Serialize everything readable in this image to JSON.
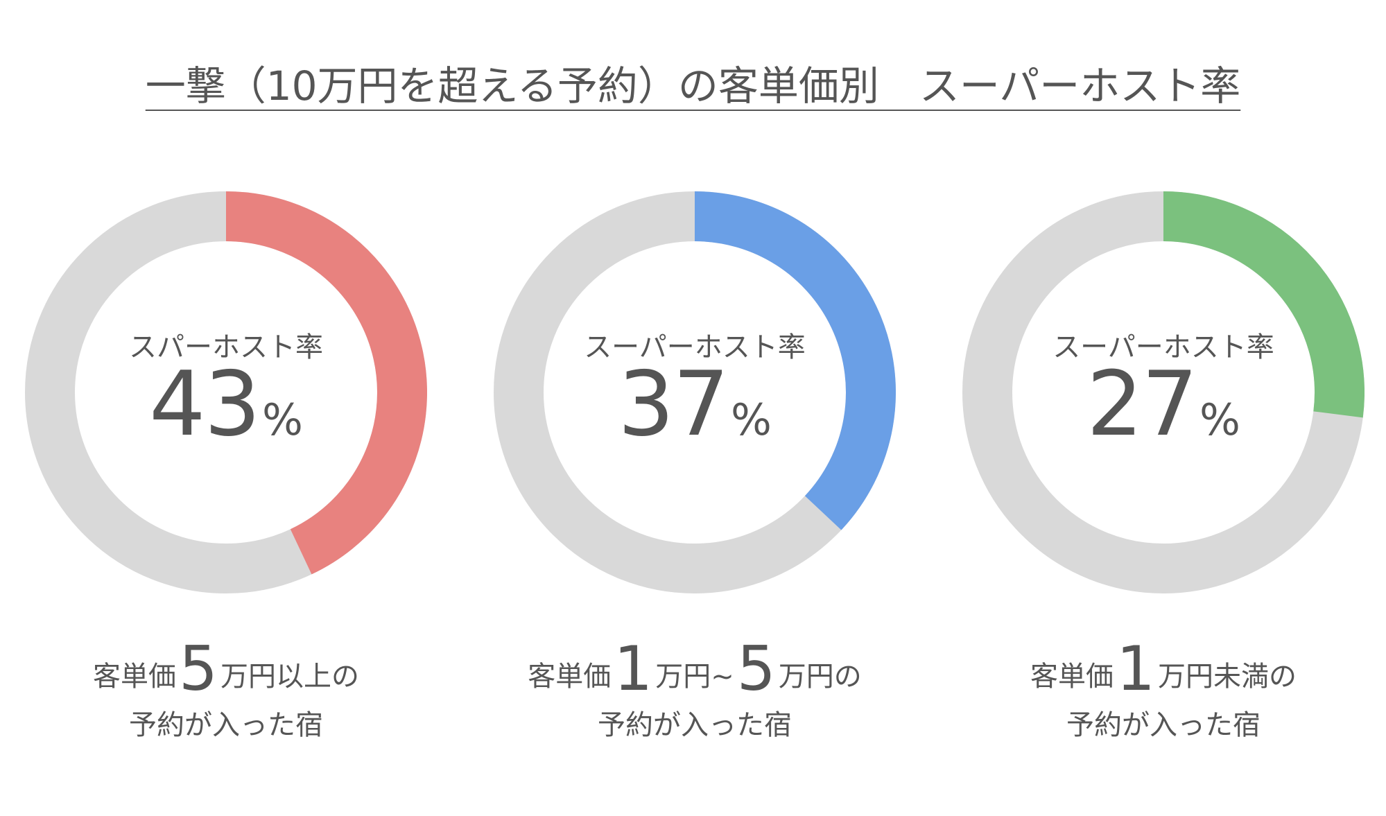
{
  "title": "一撃（10万円を超える予約）の客単価別　スーパーホスト率",
  "colors": {
    "track": "#d9d9d9",
    "text": "#555555",
    "red": "#e8827f",
    "blue": "#6a9fe6",
    "green": "#7bc17e"
  },
  "chart_data": [
    {
      "type": "pie",
      "subtype": "donut",
      "label": "スパーホスト率",
      "value": 43,
      "value_text": "43",
      "unit": "%",
      "color": "#e8827f",
      "caption": {
        "prefix": "客単価",
        "big": "5",
        "suffix": "万円以上の",
        "line2": "予約が入った宿"
      }
    },
    {
      "type": "pie",
      "subtype": "donut",
      "label": "スーパーホスト率",
      "value": 37,
      "value_text": "37",
      "unit": "%",
      "color": "#6a9fe6",
      "caption": {
        "prefix": "客単価",
        "big": "1",
        "mid": "万円~",
        "big2": "5",
        "suffix": "万円の",
        "line2": "予約が入った宿"
      }
    },
    {
      "type": "pie",
      "subtype": "donut",
      "label": "スーパーホスト率",
      "value": 27,
      "value_text": "27",
      "unit": "%",
      "color": "#7bc17e",
      "caption": {
        "prefix": "客単価",
        "big": "1",
        "suffix": "万円未満の",
        "line2": "予約が入った宿"
      }
    }
  ]
}
